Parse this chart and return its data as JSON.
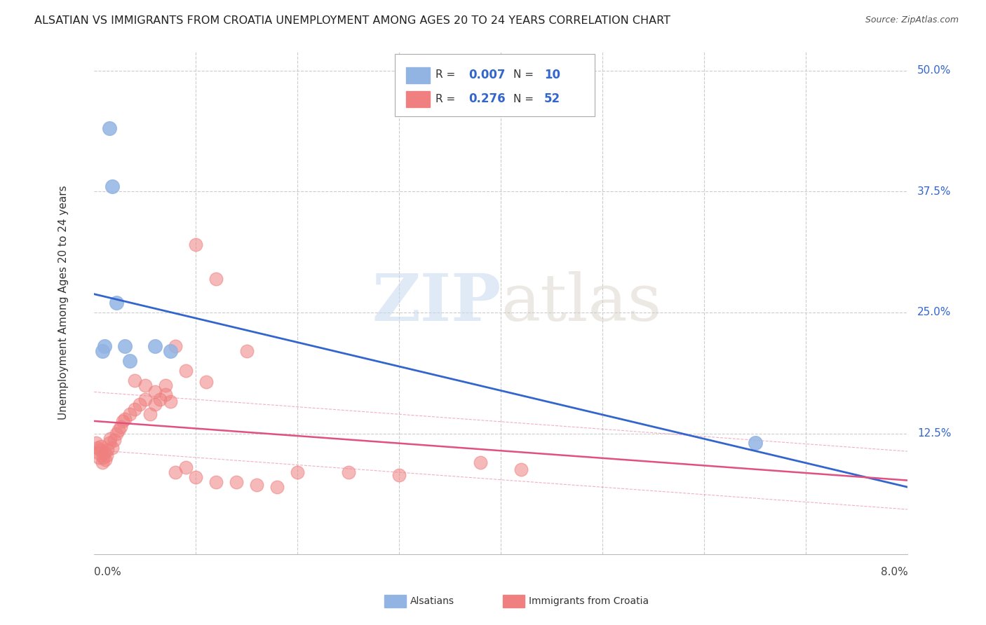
{
  "title": "ALSATIAN VS IMMIGRANTS FROM CROATIA UNEMPLOYMENT AMONG AGES 20 TO 24 YEARS CORRELATION CHART",
  "source": "Source: ZipAtlas.com",
  "ylabel": "Unemployment Among Ages 20 to 24 years",
  "ytick_labels": [
    "12.5%",
    "25.0%",
    "37.5%",
    "50.0%"
  ],
  "ytick_values": [
    0.125,
    0.25,
    0.375,
    0.5
  ],
  "legend1_R": "0.007",
  "legend1_N": "10",
  "legend2_R": "0.276",
  "legend2_N": "52",
  "blue_color": "#92B4E3",
  "pink_color": "#F08080",
  "trendline_blue_color": "#3366CC",
  "trendline_pink_color": "#E05080",
  "watermark_zip": "ZIP",
  "watermark_atlas": "atlas",
  "xmin": 0.0,
  "xmax": 0.08,
  "ymin": 0.0,
  "ymax": 0.52,
  "blue_x": [
    0.0008,
    0.001,
    0.0015,
    0.0018,
    0.0022,
    0.003,
    0.0035,
    0.006,
    0.0075,
    0.065
  ],
  "blue_y": [
    0.21,
    0.215,
    0.44,
    0.38,
    0.26,
    0.215,
    0.2,
    0.215,
    0.21,
    0.115
  ],
  "pink_x": [
    0.0002,
    0.0003,
    0.0004,
    0.0005,
    0.0006,
    0.0007,
    0.0008,
    0.0009,
    0.001,
    0.0011,
    0.0012,
    0.0013,
    0.0015,
    0.0016,
    0.0018,
    0.002,
    0.0022,
    0.0024,
    0.0026,
    0.0028,
    0.003,
    0.0035,
    0.004,
    0.0045,
    0.005,
    0.0055,
    0.006,
    0.0065,
    0.007,
    0.0075,
    0.008,
    0.009,
    0.01,
    0.012,
    0.014,
    0.016,
    0.018,
    0.02,
    0.025,
    0.03,
    0.038,
    0.042,
    0.01,
    0.012,
    0.015,
    0.008,
    0.009,
    0.011,
    0.006,
    0.007,
    0.005,
    0.004
  ],
  "pink_y": [
    0.115,
    0.11,
    0.105,
    0.1,
    0.108,
    0.112,
    0.095,
    0.1,
    0.105,
    0.098,
    0.102,
    0.108,
    0.115,
    0.12,
    0.11,
    0.118,
    0.125,
    0.128,
    0.132,
    0.138,
    0.14,
    0.145,
    0.15,
    0.155,
    0.16,
    0.145,
    0.155,
    0.16,
    0.165,
    0.158,
    0.085,
    0.09,
    0.08,
    0.075,
    0.075,
    0.072,
    0.07,
    0.085,
    0.085,
    0.082,
    0.095,
    0.088,
    0.32,
    0.285,
    0.21,
    0.215,
    0.19,
    0.178,
    0.168,
    0.175,
    0.175,
    0.18
  ]
}
